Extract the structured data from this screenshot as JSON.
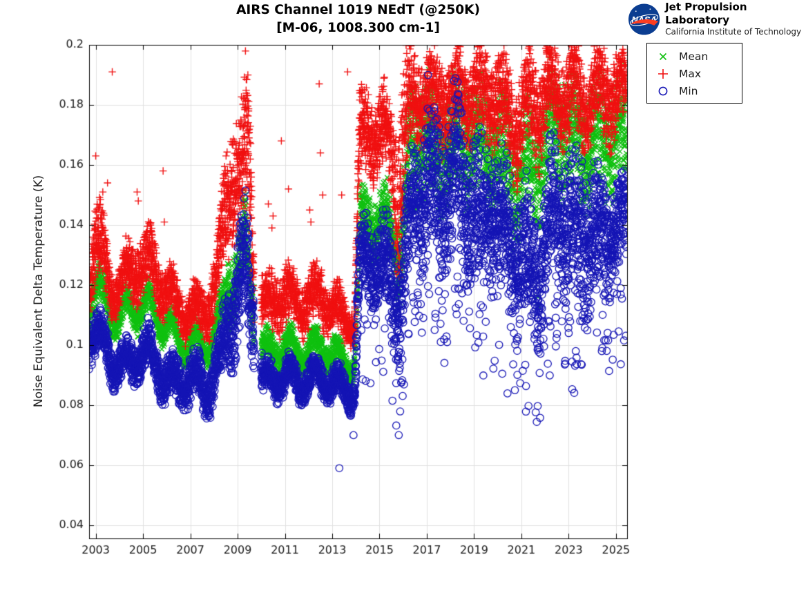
{
  "header": {
    "title_line1": "AIRS Channel 1019 NEdT (@250K)",
    "title_line2": "[M-06, 1008.300 cm-1]",
    "logo": {
      "org": "NASA",
      "name": "Jet Propulsion Laboratory",
      "sub": "California Institute of Technology",
      "circle_color": "#0b3d91",
      "swoosh_color": "#fc3d21"
    }
  },
  "chart_data": {
    "type": "scatter",
    "title": "AIRS Channel 1019 NEdT (@250K)",
    "subtitle": "[M-06, 1008.300 cm-1]",
    "xlabel": "",
    "ylabel": "Noise Equivalent Delta Temperature (K)",
    "xlim": [
      2002.72,
      2025.47
    ],
    "ylim": [
      0.0356,
      0.2
    ],
    "x_ticks": [
      2003,
      2005,
      2007,
      2009,
      2011,
      2013,
      2015,
      2017,
      2019,
      2021,
      2023,
      2025
    ],
    "y_ticks": [
      0.04,
      0.06,
      0.08,
      0.1,
      0.12,
      0.14,
      0.16,
      0.18,
      0.2
    ],
    "y_tick_labels": [
      "0.04",
      "0.06",
      "0.08",
      "0.1",
      "0.12",
      "0.14",
      "0.16",
      "0.18",
      "0.2"
    ],
    "grid": true,
    "grid_color": "#e0e0e0",
    "axis_color": "#000000",
    "legend": {
      "position": "outside-top-right",
      "entries": [
        {
          "label": "Mean",
          "marker": "x",
          "color": "#10c010"
        },
        {
          "label": "Max",
          "marker": "+",
          "color": "#f01010"
        },
        {
          "label": "Min",
          "marker": "o",
          "color": "#1515b5"
        }
      ]
    },
    "points_per_year": 255,
    "gaps": [
      [
        2009.7,
        2010.0
      ]
    ],
    "seasonal": {
      "period_years": 1,
      "amplitude_keyframes": [
        [
          2002.7,
          0.0045
        ],
        [
          2008.3,
          0.0055
        ],
        [
          2009.5,
          0.009
        ],
        [
          2009.9,
          0.004
        ],
        [
          2013.9,
          0.004
        ],
        [
          2014.2,
          0.0055
        ],
        [
          2016.3,
          0.0075
        ],
        [
          2025.5,
          0.0075
        ]
      ]
    },
    "series": [
      {
        "name": "Mean",
        "marker": "x",
        "color": "#10c010",
        "seed": 7,
        "envelope": [
          [
            2002.72,
            0.107,
            0.122
          ],
          [
            2003.0,
            0.11,
            0.127
          ],
          [
            2003.3,
            0.108,
            0.124
          ],
          [
            2003.65,
            0.104,
            0.117
          ],
          [
            2004.0,
            0.103,
            0.114
          ],
          [
            2004.4,
            0.106,
            0.118
          ],
          [
            2004.9,
            0.107,
            0.12
          ],
          [
            2005.4,
            0.106,
            0.119
          ],
          [
            2005.9,
            0.102,
            0.113
          ],
          [
            2006.4,
            0.097,
            0.108
          ],
          [
            2006.9,
            0.095,
            0.106
          ],
          [
            2007.4,
            0.094,
            0.105
          ],
          [
            2007.9,
            0.097,
            0.108
          ],
          [
            2008.3,
            0.102,
            0.116
          ],
          [
            2008.6,
            0.108,
            0.133
          ],
          [
            2009.0,
            0.112,
            0.14
          ],
          [
            2009.35,
            0.115,
            0.146
          ],
          [
            2009.6,
            0.104,
            0.134
          ],
          [
            2010.1,
            0.092,
            0.103
          ],
          [
            2010.6,
            0.093,
            0.105
          ],
          [
            2011.1,
            0.094,
            0.106
          ],
          [
            2011.6,
            0.092,
            0.103
          ],
          [
            2012.1,
            0.093,
            0.105
          ],
          [
            2012.55,
            0.094,
            0.106
          ],
          [
            2013.05,
            0.091,
            0.102
          ],
          [
            2013.55,
            0.089,
            0.1
          ],
          [
            2013.95,
            0.089,
            0.099
          ],
          [
            2014.15,
            0.128,
            0.15
          ],
          [
            2014.6,
            0.132,
            0.155
          ],
          [
            2015.1,
            0.129,
            0.152
          ],
          [
            2015.6,
            0.124,
            0.149
          ],
          [
            2015.85,
            0.113,
            0.147
          ],
          [
            2016.15,
            0.133,
            0.172
          ],
          [
            2016.45,
            0.143,
            0.19
          ],
          [
            2016.9,
            0.15,
            0.196
          ],
          [
            2017.3,
            0.14,
            0.186
          ],
          [
            2017.8,
            0.147,
            0.192
          ],
          [
            2018.3,
            0.144,
            0.19
          ],
          [
            2018.8,
            0.15,
            0.195
          ],
          [
            2019.3,
            0.142,
            0.186
          ],
          [
            2019.8,
            0.147,
            0.19
          ],
          [
            2020.3,
            0.14,
            0.182
          ],
          [
            2020.8,
            0.134,
            0.176
          ],
          [
            2021.3,
            0.137,
            0.18
          ],
          [
            2021.8,
            0.142,
            0.185
          ],
          [
            2022.3,
            0.147,
            0.192
          ],
          [
            2022.8,
            0.15,
            0.195
          ],
          [
            2023.3,
            0.144,
            0.188
          ],
          [
            2023.8,
            0.147,
            0.19
          ],
          [
            2024.3,
            0.145,
            0.188
          ],
          [
            2024.8,
            0.15,
            0.192
          ],
          [
            2025.44,
            0.147,
            0.188
          ]
        ],
        "outliers": [
          [
            2021.7,
            0.116
          ],
          [
            2021.72,
            0.113
          ]
        ]
      },
      {
        "name": "Max",
        "marker": "+",
        "color": "#f01010",
        "seed": 13,
        "envelope": [
          [
            2002.72,
            0.115,
            0.133
          ],
          [
            2003.0,
            0.12,
            0.148
          ],
          [
            2003.3,
            0.117,
            0.145
          ],
          [
            2003.65,
            0.111,
            0.129
          ],
          [
            2004.0,
            0.11,
            0.126
          ],
          [
            2004.35,
            0.114,
            0.134
          ],
          [
            2004.85,
            0.116,
            0.138
          ],
          [
            2005.35,
            0.116,
            0.139
          ],
          [
            2005.85,
            0.111,
            0.129
          ],
          [
            2006.35,
            0.105,
            0.122
          ],
          [
            2006.85,
            0.103,
            0.12
          ],
          [
            2007.35,
            0.102,
            0.118
          ],
          [
            2007.85,
            0.105,
            0.125
          ],
          [
            2008.2,
            0.112,
            0.14
          ],
          [
            2008.5,
            0.125,
            0.168
          ],
          [
            2008.8,
            0.133,
            0.182
          ],
          [
            2009.1,
            0.128,
            0.175
          ],
          [
            2009.35,
            0.138,
            0.195
          ],
          [
            2009.55,
            0.128,
            0.183
          ],
          [
            2009.7,
            0.108,
            0.14
          ],
          [
            2010.1,
            0.103,
            0.122
          ],
          [
            2010.6,
            0.104,
            0.126
          ],
          [
            2011.1,
            0.106,
            0.128
          ],
          [
            2011.6,
            0.104,
            0.122
          ],
          [
            2012.1,
            0.105,
            0.125
          ],
          [
            2012.55,
            0.107,
            0.128
          ],
          [
            2013.05,
            0.102,
            0.12
          ],
          [
            2013.55,
            0.1,
            0.117
          ],
          [
            2013.95,
            0.1,
            0.115
          ],
          [
            2014.15,
            0.152,
            0.183
          ],
          [
            2014.6,
            0.157,
            0.188
          ],
          [
            2015.1,
            0.154,
            0.185
          ],
          [
            2015.5,
            0.148,
            0.18
          ],
          [
            2015.75,
            0.115,
            0.178
          ],
          [
            2016.1,
            0.148,
            0.196
          ],
          [
            2016.45,
            0.163,
            0.2
          ],
          [
            2016.85,
            0.17,
            0.2
          ],
          [
            2017.25,
            0.16,
            0.2
          ],
          [
            2017.75,
            0.168,
            0.2
          ],
          [
            2018.25,
            0.164,
            0.2
          ],
          [
            2018.75,
            0.17,
            0.2
          ],
          [
            2019.25,
            0.162,
            0.2
          ],
          [
            2019.75,
            0.168,
            0.2
          ],
          [
            2020.25,
            0.16,
            0.198
          ],
          [
            2020.75,
            0.154,
            0.192
          ],
          [
            2021.25,
            0.158,
            0.195
          ],
          [
            2021.75,
            0.162,
            0.198
          ],
          [
            2022.25,
            0.168,
            0.2
          ],
          [
            2022.75,
            0.17,
            0.2
          ],
          [
            2023.25,
            0.164,
            0.2
          ],
          [
            2023.75,
            0.168,
            0.198
          ],
          [
            2024.25,
            0.165,
            0.2
          ],
          [
            2024.75,
            0.17,
            0.2
          ],
          [
            2025.1,
            0.168,
            0.198
          ],
          [
            2025.44,
            0.17,
            0.196
          ]
        ],
        "outliers": [
          [
            2003.0,
            0.163
          ],
          [
            2003.3,
            0.151
          ],
          [
            2003.5,
            0.154
          ],
          [
            2003.7,
            0.191
          ],
          [
            2004.75,
            0.151
          ],
          [
            2004.8,
            0.148
          ],
          [
            2005.85,
            0.158
          ],
          [
            2005.9,
            0.141
          ],
          [
            2010.3,
            0.147
          ],
          [
            2010.45,
            0.139
          ],
          [
            2010.5,
            0.143
          ],
          [
            2010.85,
            0.168
          ],
          [
            2011.15,
            0.152
          ],
          [
            2012.05,
            0.145
          ],
          [
            2012.1,
            0.141
          ],
          [
            2012.45,
            0.187
          ],
          [
            2012.5,
            0.164
          ],
          [
            2012.6,
            0.15
          ],
          [
            2013.4,
            0.15
          ],
          [
            2013.65,
            0.191
          ]
        ]
      },
      {
        "name": "Min",
        "marker": "o",
        "color": "#1515b5",
        "seed": 23,
        "envelope": [
          [
            2002.72,
            0.095,
            0.112
          ],
          [
            2003.0,
            0.096,
            0.113
          ],
          [
            2003.4,
            0.092,
            0.107
          ],
          [
            2003.8,
            0.088,
            0.1
          ],
          [
            2004.2,
            0.086,
            0.098
          ],
          [
            2004.7,
            0.089,
            0.104
          ],
          [
            2005.2,
            0.09,
            0.105
          ],
          [
            2005.7,
            0.086,
            0.1
          ],
          [
            2006.2,
            0.078,
            0.095
          ],
          [
            2006.7,
            0.082,
            0.097
          ],
          [
            2007.2,
            0.08,
            0.096
          ],
          [
            2007.7,
            0.078,
            0.094
          ],
          [
            2008.2,
            0.084,
            0.1
          ],
          [
            2008.6,
            0.092,
            0.124
          ],
          [
            2009.0,
            0.098,
            0.135
          ],
          [
            2009.35,
            0.104,
            0.146
          ],
          [
            2009.6,
            0.094,
            0.128
          ],
          [
            2010.1,
            0.082,
            0.092
          ],
          [
            2010.6,
            0.083,
            0.094
          ],
          [
            2011.1,
            0.084,
            0.095
          ],
          [
            2011.6,
            0.082,
            0.093
          ],
          [
            2012.1,
            0.083,
            0.094
          ],
          [
            2012.55,
            0.084,
            0.095
          ],
          [
            2013.05,
            0.081,
            0.092
          ],
          [
            2013.55,
            0.08,
            0.091
          ],
          [
            2013.95,
            0.08,
            0.09
          ],
          [
            2014.15,
            0.11,
            0.14
          ],
          [
            2014.6,
            0.113,
            0.145
          ],
          [
            2015.1,
            0.111,
            0.142
          ],
          [
            2015.6,
            0.098,
            0.138
          ],
          [
            2015.85,
            0.092,
            0.133
          ],
          [
            2016.15,
            0.112,
            0.152
          ],
          [
            2016.45,
            0.122,
            0.168
          ],
          [
            2016.9,
            0.128,
            0.178
          ],
          [
            2017.3,
            0.124,
            0.184
          ],
          [
            2017.8,
            0.118,
            0.178
          ],
          [
            2018.3,
            0.126,
            0.185
          ],
          [
            2018.8,
            0.12,
            0.174
          ],
          [
            2019.3,
            0.114,
            0.168
          ],
          [
            2019.8,
            0.118,
            0.17
          ],
          [
            2020.3,
            0.11,
            0.163
          ],
          [
            2020.8,
            0.106,
            0.156
          ],
          [
            2021.3,
            0.099,
            0.152
          ],
          [
            2021.7,
            0.097,
            0.148
          ],
          [
            2022.2,
            0.113,
            0.166
          ],
          [
            2022.7,
            0.118,
            0.17
          ],
          [
            2023.2,
            0.104,
            0.163
          ],
          [
            2023.7,
            0.113,
            0.166
          ],
          [
            2024.2,
            0.109,
            0.158
          ],
          [
            2024.7,
            0.116,
            0.16
          ],
          [
            2025.1,
            0.118,
            0.158
          ],
          [
            2025.44,
            0.123,
            0.156
          ]
        ],
        "low_tail": {
          "start": 2014.1,
          "probability": 0.05,
          "depth": 0.026
        },
        "outliers": [
          [
            2013.3,
            0.059
          ],
          [
            2013.9,
            0.07
          ],
          [
            2010.25,
            0.0865
          ],
          [
            2017.05,
            0.19
          ],
          [
            2018.15,
            0.188
          ],
          [
            2021.55,
            0.102
          ],
          [
            2021.7,
            0.099
          ],
          [
            2023.0,
            0.104
          ],
          [
            2023.3,
            0.098
          ],
          [
            2024.4,
            0.098
          ],
          [
            2025.2,
            0.119
          ]
        ]
      }
    ]
  }
}
